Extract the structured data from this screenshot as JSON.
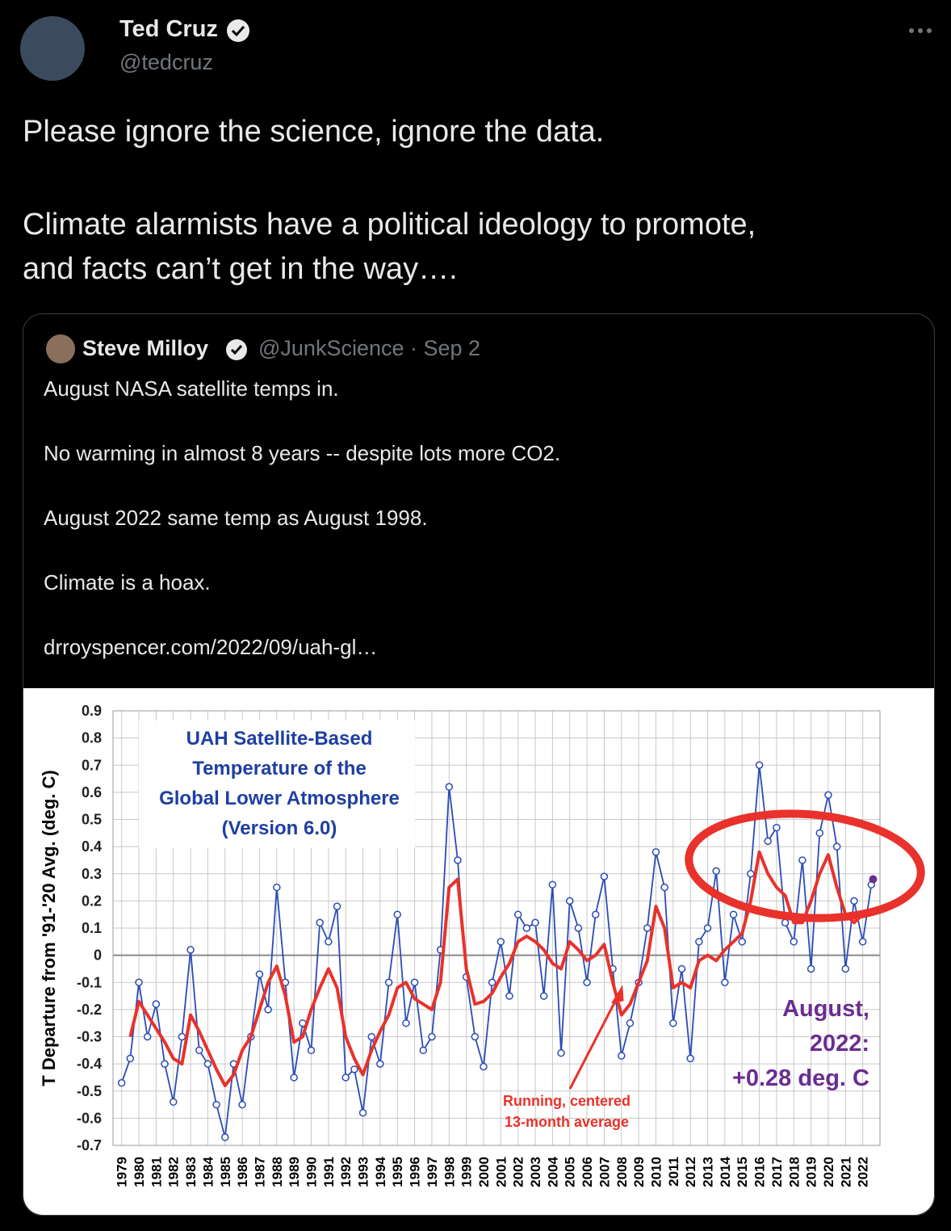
{
  "tweet": {
    "author": {
      "name": "Ted Cruz",
      "handle": "@tedcruz"
    },
    "lines": [
      "Please ignore the science, ignore the data.",
      "Climate alarmists have a political ideology to promote,",
      "and facts can’t get in the way…."
    ],
    "quoted": {
      "author": {
        "name": "Steve Milloy",
        "meta": "@JunkScience · Sep 2"
      },
      "lines": [
        "August NASA satellite temps in.",
        "No warming in almost 8 years -- despite lots more CO2.",
        "August 2022 same temp as August 1998.",
        "Climate is a hoax.",
        "drroyspencer.com/2022/09/uah-gl…"
      ]
    }
  },
  "chart_data": {
    "type": "line",
    "title_lines": [
      "UAH Satellite-Based",
      "Temperature of the",
      "Global Lower Atmosphere",
      "(Version 6.0)"
    ],
    "y_label": "T Departure from '91-'20 Avg. (deg. C)",
    "annotations": {
      "latest": {
        "lines": [
          "August,",
          "2022:",
          "+0.28 deg. C"
        ],
        "color": "#6a2d91"
      },
      "average": {
        "lines": [
          "Running, centered",
          "13-month average"
        ],
        "color": "#e8322b"
      }
    },
    "x": [
      1979,
      1979.5,
      1980,
      1980.5,
      1981,
      1981.5,
      1982,
      1982.5,
      1983,
      1983.5,
      1984,
      1984.5,
      1985,
      1985.5,
      1986,
      1986.5,
      1987,
      1987.5,
      1988,
      1988.5,
      1989,
      1989.5,
      1990,
      1990.5,
      1991,
      1991.5,
      1992,
      1992.5,
      1993,
      1993.5,
      1994,
      1994.5,
      1995,
      1995.5,
      1996,
      1996.5,
      1997,
      1997.5,
      1998,
      1998.5,
      1999,
      1999.5,
      2000,
      2000.5,
      2001,
      2001.5,
      2002,
      2002.5,
      2003,
      2003.5,
      2004,
      2004.5,
      2005,
      2005.5,
      2006,
      2006.5,
      2007,
      2007.5,
      2008,
      2008.5,
      2009,
      2009.5,
      2010,
      2010.5,
      2011,
      2011.5,
      2012,
      2012.5,
      2013,
      2013.5,
      2014,
      2014.5,
      2015,
      2015.5,
      2016,
      2016.5,
      2017,
      2017.5,
      2018,
      2018.5,
      2019,
      2019.5,
      2020,
      2020.5,
      2021,
      2021.5,
      2022,
      2022.5
    ],
    "series": [
      {
        "color": "#2a4bb7",
        "values": [
          -0.47,
          -0.38,
          -0.1,
          -0.3,
          -0.18,
          -0.4,
          -0.54,
          -0.3,
          0.02,
          -0.35,
          -0.4,
          -0.55,
          -0.67,
          -0.4,
          -0.55,
          -0.3,
          -0.07,
          -0.2,
          0.25,
          -0.1,
          -0.45,
          -0.25,
          -0.35,
          0.12,
          0.05,
          0.18,
          -0.45,
          -0.42,
          -0.58,
          -0.3,
          -0.4,
          -0.1,
          0.15,
          -0.25,
          -0.1,
          -0.35,
          -0.3,
          0.02,
          0.62,
          0.35,
          -0.08,
          -0.3,
          -0.41,
          -0.1,
          0.05,
          -0.15,
          0.15,
          0.1,
          0.12,
          -0.15,
          0.26,
          -0.36,
          0.2,
          0.1,
          -0.1,
          0.15,
          0.29,
          -0.05,
          -0.37,
          -0.25,
          -0.1,
          0.1,
          0.38,
          0.25,
          -0.25,
          -0.05,
          -0.38,
          0.05,
          0.1,
          0.31,
          -0.1,
          0.15,
          0.05,
          0.3,
          0.7,
          0.42,
          0.47,
          0.12,
          0.05,
          0.35,
          -0.05,
          0.45,
          0.59,
          0.4,
          -0.05,
          0.2,
          0.05,
          0.26
        ]
      },
      {
        "color": "#e8322b",
        "values": [
          null,
          -0.3,
          -0.17,
          -0.22,
          -0.27,
          -0.32,
          -0.38,
          -0.4,
          -0.22,
          -0.28,
          -0.35,
          -0.42,
          -0.48,
          -0.44,
          -0.35,
          -0.3,
          -0.2,
          -0.1,
          -0.04,
          -0.15,
          -0.32,
          -0.3,
          -0.2,
          -0.12,
          -0.05,
          -0.12,
          -0.3,
          -0.38,
          -0.44,
          -0.35,
          -0.28,
          -0.22,
          -0.12,
          -0.1,
          -0.16,
          -0.18,
          -0.2,
          -0.1,
          0.25,
          0.28,
          -0.05,
          -0.18,
          -0.17,
          -0.14,
          -0.08,
          -0.03,
          0.05,
          0.07,
          0.05,
          0.02,
          -0.03,
          -0.05,
          0.05,
          0.02,
          -0.02,
          0,
          0.04,
          -0.1,
          -0.22,
          -0.18,
          -0.1,
          -0.02,
          0.18,
          0.1,
          -0.12,
          -0.1,
          -0.12,
          -0.02,
          0,
          -0.02,
          0.02,
          0.05,
          0.08,
          0.2,
          0.38,
          0.3,
          0.25,
          0.22,
          0.12,
          0.12,
          0.2,
          0.3,
          0.37,
          0.25,
          0.15,
          0.12,
          0.15,
          null
        ]
      }
    ],
    "highlight": {
      "x": 2022.6,
      "value": 0.28,
      "color": "#6a2d91"
    },
    "xlim": [
      1978.5,
      2023
    ],
    "xticks": [
      1979,
      1980,
      1981,
      1982,
      1983,
      1984,
      1985,
      1986,
      1987,
      1988,
      1989,
      1990,
      1991,
      1992,
      1993,
      1994,
      1995,
      1996,
      1997,
      1998,
      1999,
      2000,
      2001,
      2002,
      2003,
      2004,
      2005,
      2006,
      2007,
      2008,
      2009,
      2010,
      2011,
      2012,
      2013,
      2014,
      2015,
      2016,
      2017,
      2018,
      2019,
      2020,
      2021,
      2022
    ],
    "ylim": [
      -0.7,
      0.9
    ],
    "yticks": [
      0.9,
      0.8,
      0.7,
      0.6,
      0.5,
      0.4,
      0.3,
      0.2,
      0.1,
      0,
      -0.1,
      -0.2,
      -0.3,
      -0.4,
      -0.5,
      -0.6,
      -0.7
    ],
    "grid": true
  }
}
